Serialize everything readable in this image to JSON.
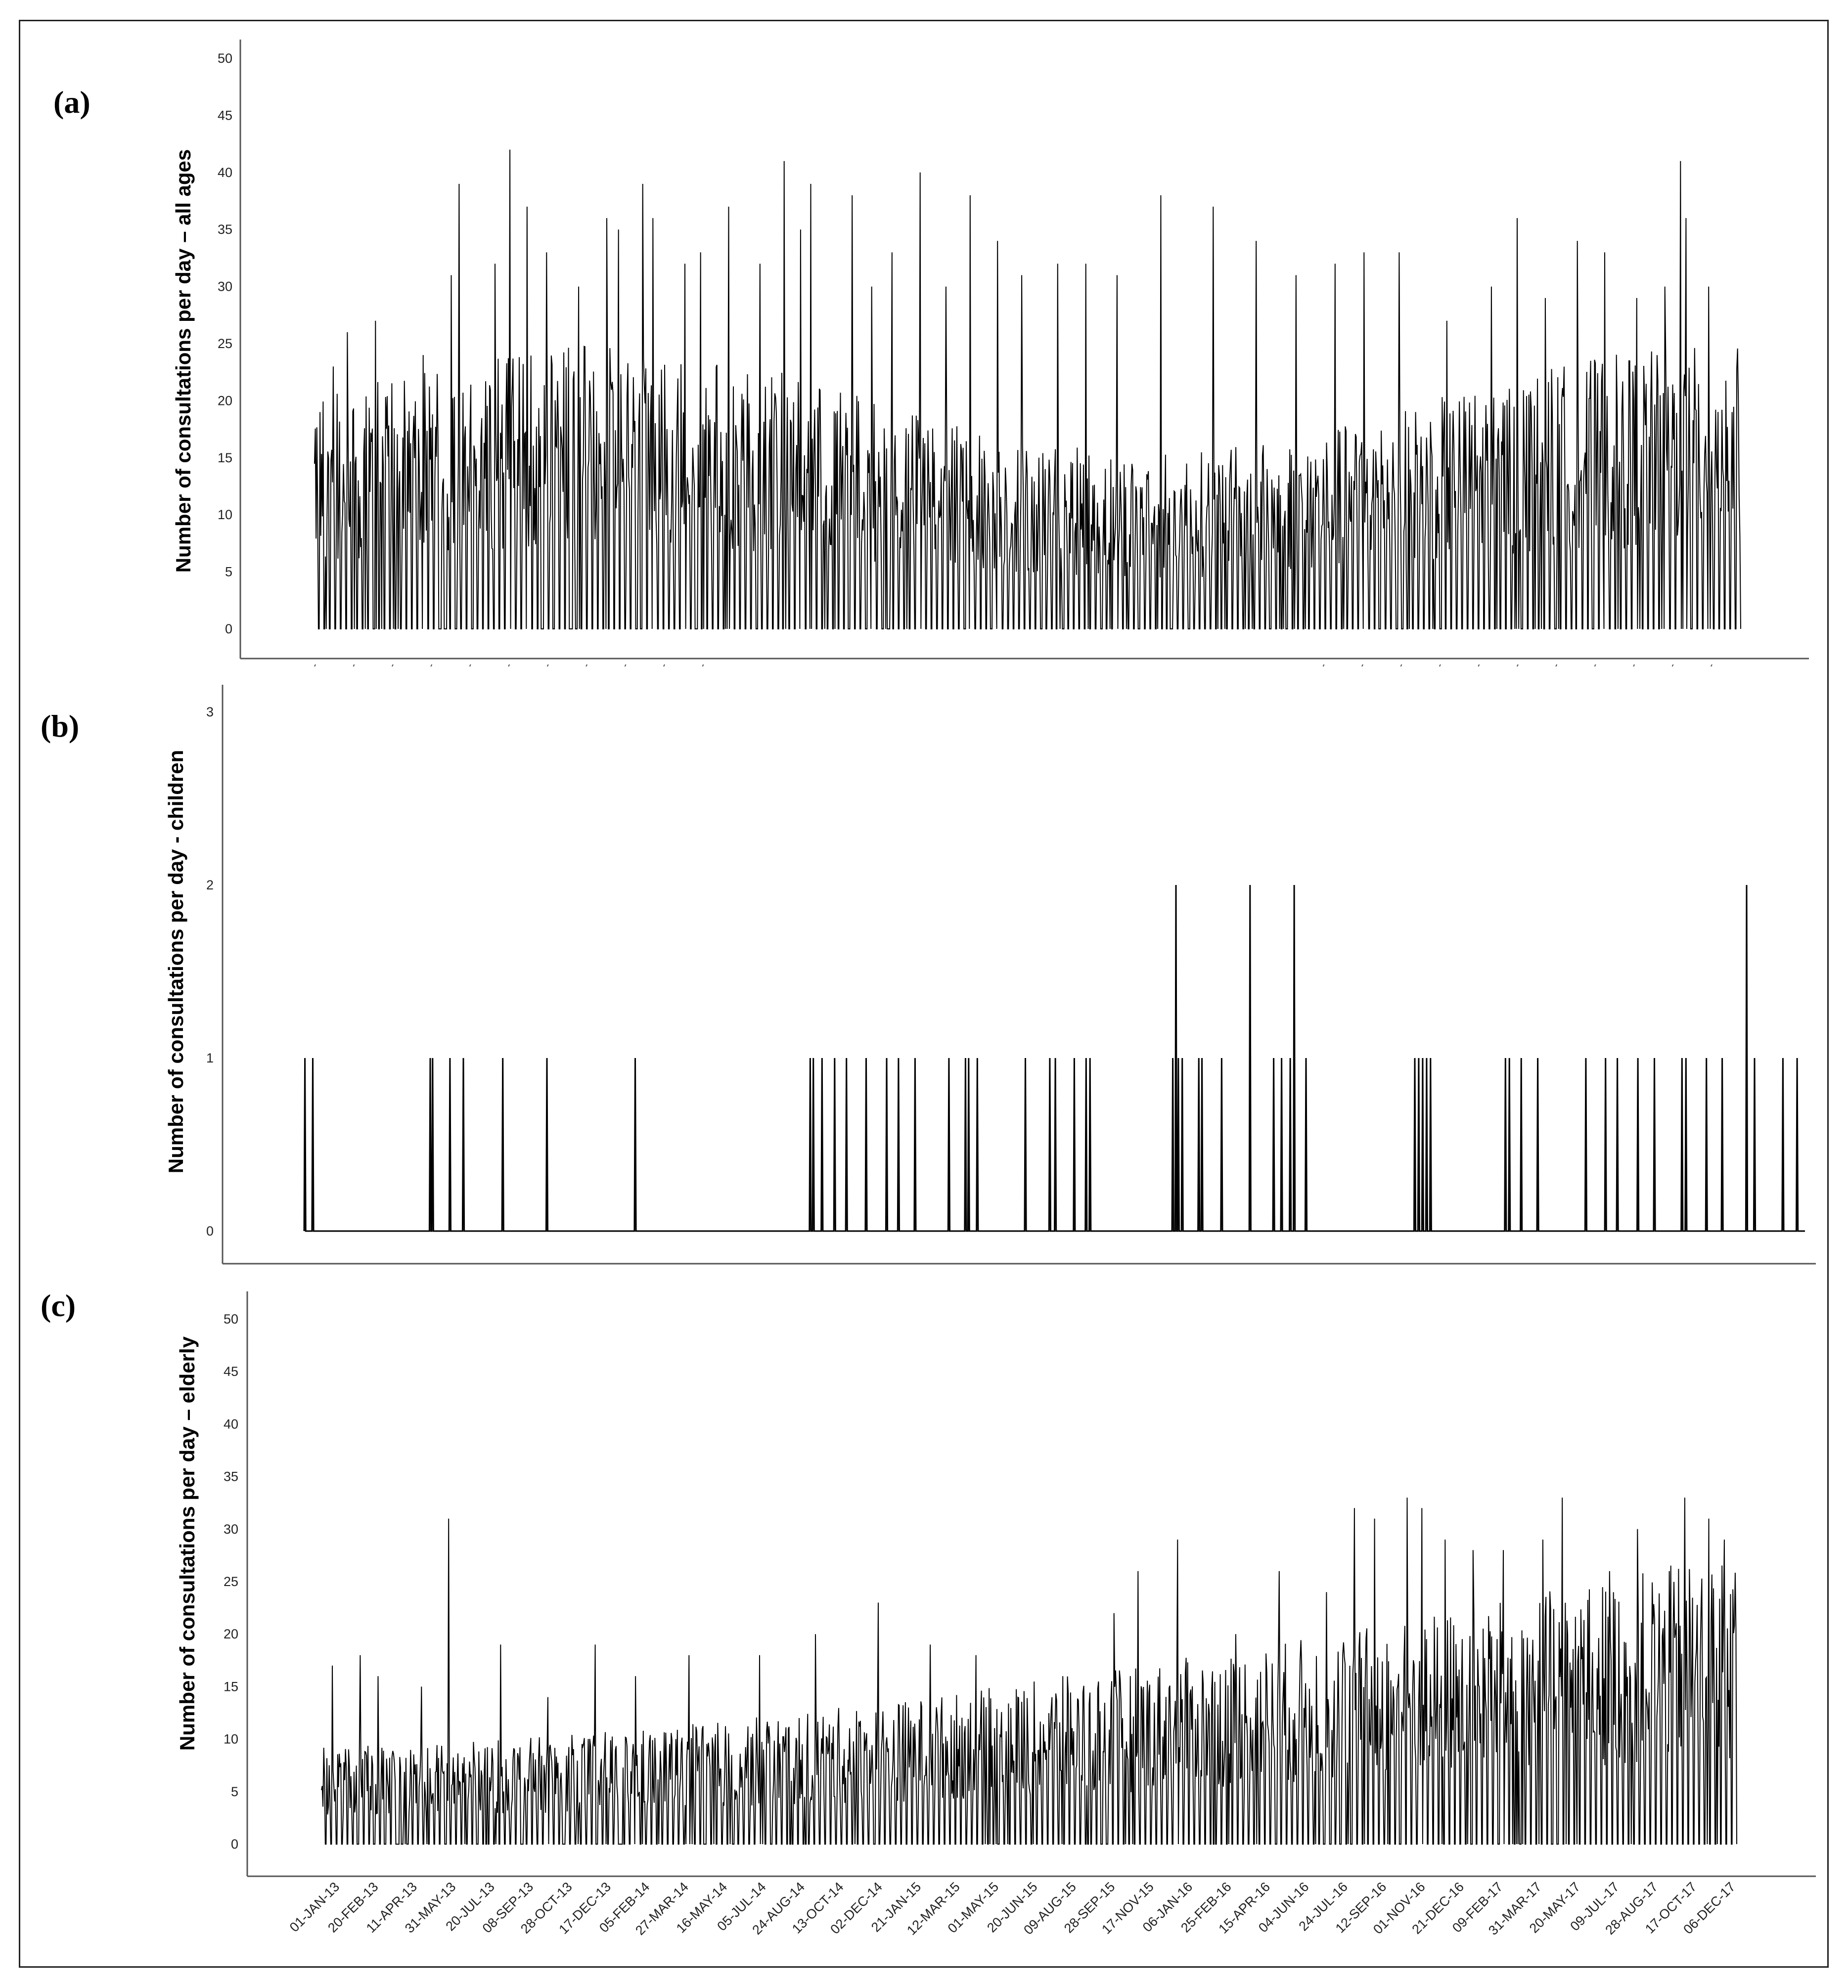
{
  "chart_data": [
    {
      "type": "line",
      "panel": "(a)",
      "ylabel": "Number of consultations per day – all ages",
      "ylim": [
        0,
        50
      ],
      "yticks": [
        0,
        5,
        10,
        15,
        20,
        25,
        30,
        35,
        40,
        45,
        50
      ],
      "x_range": [
        "01-JAN-13",
        "31-DEC-17"
      ],
      "grid": false,
      "peaks": [
        {
          "x": "2013-01-08",
          "y": 19
        },
        {
          "x": "2013-01-25",
          "y": 23
        },
        {
          "x": "2013-02-12",
          "y": 26
        },
        {
          "x": "2013-03-20",
          "y": 27
        },
        {
          "x": "2013-05-20",
          "y": 24
        },
        {
          "x": "2013-06-25",
          "y": 31
        },
        {
          "x": "2013-07-05",
          "y": 39
        },
        {
          "x": "2013-08-20",
          "y": 32
        },
        {
          "x": "2013-09-08",
          "y": 42
        },
        {
          "x": "2013-09-30",
          "y": 37
        },
        {
          "x": "2013-10-25",
          "y": 33
        },
        {
          "x": "2013-12-05",
          "y": 30
        },
        {
          "x": "2014-01-10",
          "y": 36
        },
        {
          "x": "2014-01-25",
          "y": 35
        },
        {
          "x": "2014-02-25",
          "y": 39
        },
        {
          "x": "2014-03-10",
          "y": 36
        },
        {
          "x": "2014-04-20",
          "y": 32
        },
        {
          "x": "2014-05-10",
          "y": 33
        },
        {
          "x": "2014-06-15",
          "y": 37
        },
        {
          "x": "2014-07-25",
          "y": 32
        },
        {
          "x": "2014-08-25",
          "y": 41
        },
        {
          "x": "2014-09-15",
          "y": 35
        },
        {
          "x": "2014-09-28",
          "y": 39
        },
        {
          "x": "2014-11-20",
          "y": 38
        },
        {
          "x": "2014-12-15",
          "y": 30
        },
        {
          "x": "2015-01-10",
          "y": 33
        },
        {
          "x": "2015-02-15",
          "y": 40
        },
        {
          "x": "2015-03-20",
          "y": 30
        },
        {
          "x": "2015-04-20",
          "y": 38
        },
        {
          "x": "2015-05-25",
          "y": 34
        },
        {
          "x": "2015-06-25",
          "y": 31
        },
        {
          "x": "2015-08-10",
          "y": 32
        },
        {
          "x": "2015-09-15",
          "y": 32
        },
        {
          "x": "2015-10-25",
          "y": 31
        },
        {
          "x": "2015-12-20",
          "y": 38
        },
        {
          "x": "2016-02-25",
          "y": 37
        },
        {
          "x": "2016-04-20",
          "y": 34
        },
        {
          "x": "2016-06-10",
          "y": 31
        },
        {
          "x": "2016-07-30",
          "y": 32
        },
        {
          "x": "2016-09-05",
          "y": 33
        },
        {
          "x": "2016-10-20",
          "y": 33
        },
        {
          "x": "2016-12-20",
          "y": 27
        },
        {
          "x": "2017-02-15",
          "y": 30
        },
        {
          "x": "2017-03-20",
          "y": 36
        },
        {
          "x": "2017-04-25",
          "y": 29
        },
        {
          "x": "2017-06-05",
          "y": 34
        },
        {
          "x": "2017-07-10",
          "y": 33
        },
        {
          "x": "2017-08-20",
          "y": 29
        },
        {
          "x": "2017-09-25",
          "y": 30
        },
        {
          "x": "2017-10-15",
          "y": 41
        },
        {
          "x": "2017-10-22",
          "y": 36
        },
        {
          "x": "2017-11-20",
          "y": 30
        },
        {
          "x": "2017-12-20",
          "y": 19
        }
      ]
    },
    {
      "type": "line",
      "panel": "(b)",
      "ylabel": "Number of consultations per day - children",
      "ylim": [
        0,
        3
      ],
      "yticks": [
        0,
        1,
        2,
        3
      ],
      "x_range": [
        "01-JAN-13",
        "31-DEC-17"
      ],
      "grid": false,
      "events": [
        {
          "x": "2013-01-02",
          "y": 1
        },
        {
          "x": "2013-01-12",
          "y": 1
        },
        {
          "x": "2013-06-10",
          "y": 1
        },
        {
          "x": "2013-06-13",
          "y": 1
        },
        {
          "x": "2013-07-05",
          "y": 1
        },
        {
          "x": "2013-07-22",
          "y": 1
        },
        {
          "x": "2013-09-10",
          "y": 1
        },
        {
          "x": "2013-11-05",
          "y": 1
        },
        {
          "x": "2014-02-25",
          "y": 1
        },
        {
          "x": "2014-10-05",
          "y": 1
        },
        {
          "x": "2014-10-09",
          "y": 1
        },
        {
          "x": "2014-10-20",
          "y": 1
        },
        {
          "x": "2014-11-05",
          "y": 1
        },
        {
          "x": "2014-11-20",
          "y": 1
        },
        {
          "x": "2014-12-15",
          "y": 1
        },
        {
          "x": "2015-01-10",
          "y": 1
        },
        {
          "x": "2015-01-25",
          "y": 1
        },
        {
          "x": "2015-02-15",
          "y": 1
        },
        {
          "x": "2015-03-30",
          "y": 1
        },
        {
          "x": "2015-04-20",
          "y": 1
        },
        {
          "x": "2015-04-24",
          "y": 1
        },
        {
          "x": "2015-05-05",
          "y": 1
        },
        {
          "x": "2015-07-05",
          "y": 1
        },
        {
          "x": "2015-08-05",
          "y": 1
        },
        {
          "x": "2015-08-12",
          "y": 1
        },
        {
          "x": "2015-09-05",
          "y": 1
        },
        {
          "x": "2015-09-20",
          "y": 1
        },
        {
          "x": "2015-09-25",
          "y": 1
        },
        {
          "x": "2016-01-08",
          "y": 1
        },
        {
          "x": "2016-01-12",
          "y": 2
        },
        {
          "x": "2016-01-15",
          "y": 1
        },
        {
          "x": "2016-01-20",
          "y": 1
        },
        {
          "x": "2016-02-10",
          "y": 1
        },
        {
          "x": "2016-02-14",
          "y": 1
        },
        {
          "x": "2016-03-10",
          "y": 1
        },
        {
          "x": "2016-04-15",
          "y": 2
        },
        {
          "x": "2016-05-15",
          "y": 1
        },
        {
          "x": "2016-05-25",
          "y": 1
        },
        {
          "x": "2016-06-05",
          "y": 1
        },
        {
          "x": "2016-06-10",
          "y": 2
        },
        {
          "x": "2016-06-25",
          "y": 1
        },
        {
          "x": "2016-11-10",
          "y": 1
        },
        {
          "x": "2016-11-15",
          "y": 1
        },
        {
          "x": "2016-11-20",
          "y": 1
        },
        {
          "x": "2016-11-25",
          "y": 1
        },
        {
          "x": "2016-11-30",
          "y": 1
        },
        {
          "x": "2017-03-05",
          "y": 1
        },
        {
          "x": "2017-03-10",
          "y": 1
        },
        {
          "x": "2017-03-25",
          "y": 1
        },
        {
          "x": "2017-04-15",
          "y": 1
        },
        {
          "x": "2017-06-15",
          "y": 1
        },
        {
          "x": "2017-07-10",
          "y": 1
        },
        {
          "x": "2017-07-25",
          "y": 1
        },
        {
          "x": "2017-08-20",
          "y": 1
        },
        {
          "x": "2017-09-10",
          "y": 1
        },
        {
          "x": "2017-10-15",
          "y": 1
        },
        {
          "x": "2017-10-20",
          "y": 1
        },
        {
          "x": "2017-11-15",
          "y": 1
        },
        {
          "x": "2017-12-05",
          "y": 1
        },
        {
          "x": "2018-01-05",
          "y": 2
        },
        {
          "x": "2018-01-15",
          "y": 1
        },
        {
          "x": "2018-02-20",
          "y": 1
        },
        {
          "x": "2018-03-10",
          "y": 1
        }
      ]
    },
    {
      "type": "line",
      "panel": "(c)",
      "ylabel": "Number of consultations per day – elderly",
      "ylim": [
        0,
        50
      ],
      "yticks": [
        0,
        5,
        10,
        15,
        20,
        25,
        30,
        35,
        40,
        45,
        50
      ],
      "x_range": [
        "01-JAN-13",
        "31-DEC-17"
      ],
      "grid": false,
      "xticks": [
        "01-JAN-13",
        "20-FEB-13",
        "11-APR-13",
        "31-MAY-13",
        "20-JUL-13",
        "08-SEP-13",
        "28-OCT-13",
        "17-DEC-13",
        "05-FEB-14",
        "27-MAR-14",
        "16-MAY-14",
        "05-JUL-14",
        "24-AUG-14",
        "13-OCT-14",
        "02-DEC-14",
        "21-JAN-15",
        "12-MAR-15",
        "01-MAY-15",
        "20-JUN-15",
        "09-AUG-15",
        "28-SEP-15",
        "17-NOV-15",
        "06-JAN-16",
        "25-FEB-16",
        "15-APR-16",
        "04-JUN-16",
        "24-JUL-16",
        "12-SEP-16",
        "01-NOV-16",
        "21-DEC-16",
        "09-FEB-17",
        "31-MAR-17",
        "20-MAY-17",
        "09-JUL-17",
        "28-AUG-17",
        "17-OCT-17",
        "06-DEC-17"
      ],
      "peaks": [
        {
          "x": "2013-01-15",
          "y": 17
        },
        {
          "x": "2013-02-20",
          "y": 18
        },
        {
          "x": "2013-03-15",
          "y": 16
        },
        {
          "x": "2013-05-10",
          "y": 15
        },
        {
          "x": "2013-06-14",
          "y": 31
        },
        {
          "x": "2013-08-20",
          "y": 19
        },
        {
          "x": "2013-10-20",
          "y": 14
        },
        {
          "x": "2013-12-20",
          "y": 19
        },
        {
          "x": "2014-02-10",
          "y": 16
        },
        {
          "x": "2014-04-20",
          "y": 18
        },
        {
          "x": "2014-07-20",
          "y": 18
        },
        {
          "x": "2014-09-30",
          "y": 20
        },
        {
          "x": "2014-12-20",
          "y": 23
        },
        {
          "x": "2015-02-25",
          "y": 19
        },
        {
          "x": "2015-04-25",
          "y": 18
        },
        {
          "x": "2015-08-15",
          "y": 16
        },
        {
          "x": "2015-10-20",
          "y": 22
        },
        {
          "x": "2015-11-20",
          "y": 26
        },
        {
          "x": "2016-01-10",
          "y": 29
        },
        {
          "x": "2016-03-25",
          "y": 20
        },
        {
          "x": "2016-05-20",
          "y": 26
        },
        {
          "x": "2016-07-20",
          "y": 24
        },
        {
          "x": "2016-08-25",
          "y": 32
        },
        {
          "x": "2016-09-20",
          "y": 31
        },
        {
          "x": "2016-11-01",
          "y": 33
        },
        {
          "x": "2016-11-20",
          "y": 32
        },
        {
          "x": "2016-12-20",
          "y": 29
        },
        {
          "x": "2017-01-25",
          "y": 28
        },
        {
          "x": "2017-03-05",
          "y": 28
        },
        {
          "x": "2017-04-25",
          "y": 29
        },
        {
          "x": "2017-05-20",
          "y": 33
        },
        {
          "x": "2017-07-20",
          "y": 26
        },
        {
          "x": "2017-08-25",
          "y": 30
        },
        {
          "x": "2017-10-05",
          "y": 26
        },
        {
          "x": "2017-10-25",
          "y": 33
        },
        {
          "x": "2017-11-25",
          "y": 31
        },
        {
          "x": "2017-12-15",
          "y": 29
        }
      ]
    }
  ],
  "colors": {
    "line": "#000000",
    "axis": "#555555",
    "text": "#222222"
  }
}
